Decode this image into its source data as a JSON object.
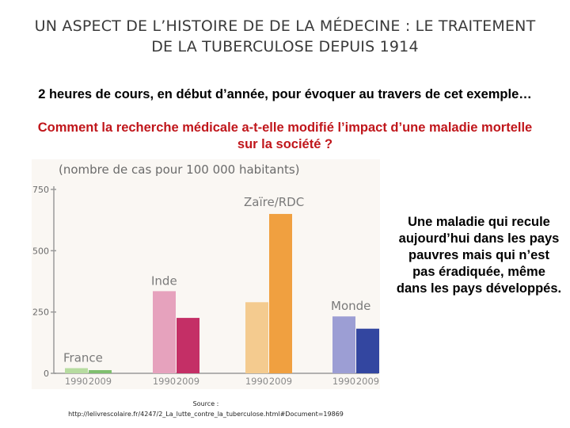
{
  "slide": {
    "title_line1": "UN ASPECT DE L’HISTOIRE DE DE LA MÉDECINE : LE TRAITEMENT",
    "title_line2": "DE LA TUBERCULOSE DEPUIS 1914",
    "subtitle": "2 heures de cours, en début d’année, pour évoquer au travers de cet exemple…",
    "question_line1": "Comment la recherche médicale a-t-elle modifié l’impact d’une maladie mortelle",
    "question_line2": "sur la société ?",
    "side_note": "Une maladie qui recule aujourd’hui dans les pays pauvres mais qui n’est pas éradiquée, même dans les pays développés.",
    "source_label": "Source :",
    "source_url": "http://lelivrescolaire.fr/4247/2_La_lutte_contre_la_tuberculose.html#Document=19869"
  },
  "chart_data": {
    "type": "bar",
    "title": "(nombre de cas pour 100 000 habitants)",
    "ylim": [
      0,
      750
    ],
    "yticks": [
      0,
      250,
      500,
      750
    ],
    "groups": [
      {
        "name": "France",
        "bars": [
          {
            "year": "1990",
            "value": 21,
            "color": "#b7dca0"
          },
          {
            "year": "2009",
            "value": 13,
            "color": "#7fbf6e"
          }
        ]
      },
      {
        "name": "Inde",
        "bars": [
          {
            "year": "1990",
            "value": 335,
            "color": "#e6a2bd"
          },
          {
            "year": "2009",
            "value": 226,
            "color": "#c42f66"
          }
        ]
      },
      {
        "name": "Zaïre/RDC",
        "bars": [
          {
            "year": "1990",
            "value": 290,
            "color": "#f4cb8f"
          },
          {
            "year": "2009",
            "value": 650,
            "color": "#f0a040"
          }
        ]
      },
      {
        "name": "Monde",
        "bars": [
          {
            "year": "1990",
            "value": 232,
            "color": "#9c9ed4"
          },
          {
            "year": "2009",
            "value": 182,
            "color": "#3346a0"
          }
        ]
      }
    ],
    "colors": {
      "axis": "#9a9a9a",
      "grid": "#e8e1d8",
      "label": "#6b6b6b"
    }
  }
}
